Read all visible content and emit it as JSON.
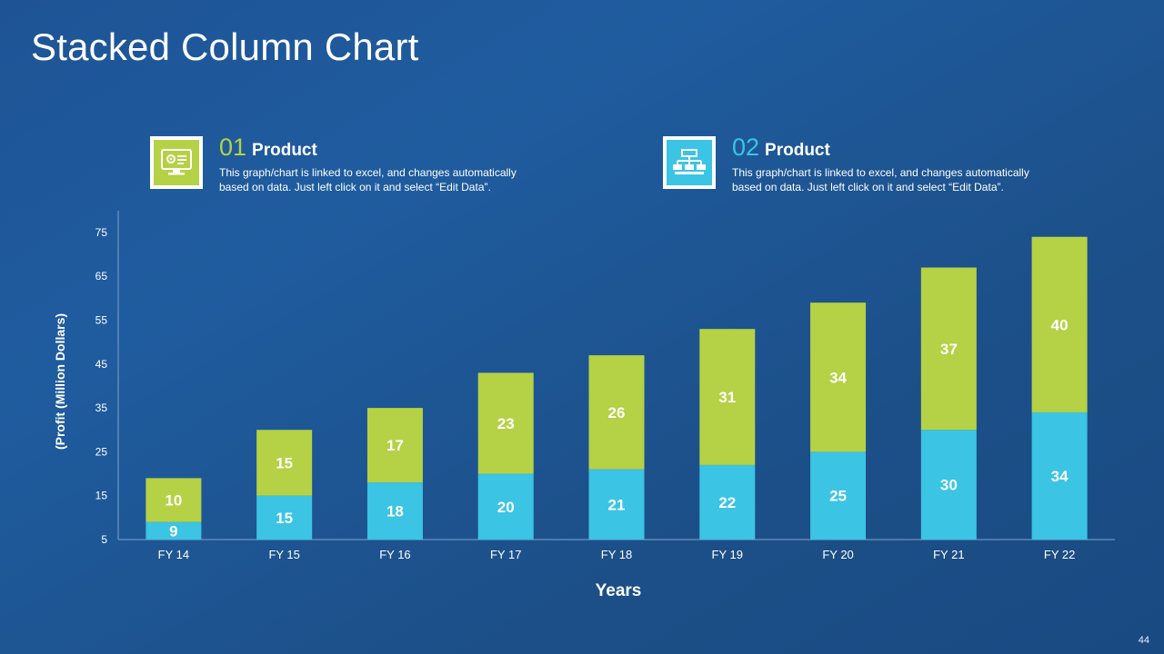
{
  "slide": {
    "title": "Stacked Column Chart",
    "page_number": "44"
  },
  "legend": [
    {
      "number": "01",
      "label": "Product",
      "description_line1": "This graph/chart is linked to excel, and changes automatically",
      "description_line2": "based on data. Just left click on it and select “Edit Data”.",
      "color": "#b5d145",
      "icon": "monitor-settings-icon"
    },
    {
      "number": "02",
      "label": "Product",
      "description_line1": "This graph/chart is linked to excel, and changes automatically",
      "description_line2": "based on data. Just left click on it and select “Edit Data”.",
      "color": "#3bc4e4",
      "icon": "org-chart-icon"
    }
  ],
  "chart_data": {
    "type": "bar",
    "stacked": true,
    "categories": [
      "FY 14",
      "FY 15",
      "FY 16",
      "FY 17",
      "FY 18",
      "FY 19",
      "FY 20",
      "FY 21",
      "FY 22"
    ],
    "series": [
      {
        "name": "02 Product",
        "color": "#3bc4e4",
        "values": [
          9,
          15,
          18,
          20,
          21,
          22,
          25,
          30,
          34
        ]
      },
      {
        "name": "01 Product",
        "color": "#b5d145",
        "values": [
          10,
          15,
          17,
          23,
          26,
          31,
          34,
          37,
          40
        ]
      }
    ],
    "xlabel": "Years",
    "ylabel": "(Profit  (Million Dollars)",
    "ylim": [
      5,
      80
    ],
    "yticks": [
      5,
      15,
      25,
      35,
      45,
      55,
      65,
      75
    ],
    "grid": false
  }
}
